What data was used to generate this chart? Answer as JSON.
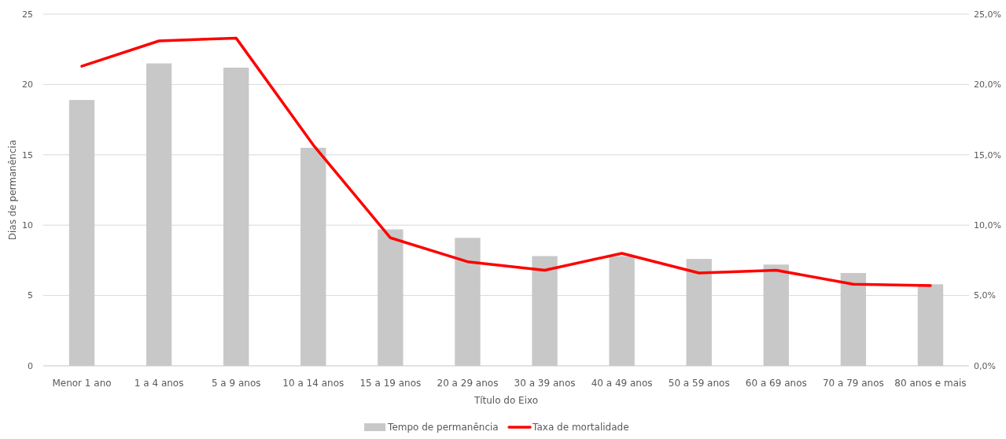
{
  "chart_data": {
    "type": "bar",
    "xlabel": "Título do Eixo",
    "ylabel": "Dias de permanência",
    "categories": [
      "Menor 1 ano",
      "1 a 4 anos",
      "5 a 9 anos",
      "10 a 14 anos",
      "15 a 19 anos",
      "20 a 29 anos",
      "30 a 39 anos",
      "40 a 49 anos",
      "50 a 59 anos",
      "60 a 69 anos",
      "70 a 79 anos",
      "80 anos e mais"
    ],
    "series": [
      {
        "name": "Tempo de permanência",
        "color": "#c8c8c8",
        "values": [
          18.9,
          21.5,
          21.2,
          15.5,
          9.7,
          9.1,
          7.8,
          7.8,
          7.6,
          7.2,
          6.6,
          5.8
        ]
      },
      {
        "name": "Taxa de mortalidade",
        "type": "line",
        "axis": "y2",
        "color": "#ff0000",
        "values": [
          0.213,
          0.231,
          0.233,
          0.157,
          0.091,
          0.074,
          0.068,
          0.08,
          0.066,
          0.068,
          0.058,
          0.057
        ]
      }
    ],
    "ylim": [
      0,
      25
    ],
    "yticks": [
      0,
      5,
      10,
      15,
      20,
      25
    ],
    "y2lim": [
      0,
      0.25
    ],
    "y2ticks": [
      {
        "value": 0,
        "label": "0,0%"
      },
      {
        "value": 0.05,
        "label": "5,0%"
      },
      {
        "value": 0.1,
        "label": "10,0%"
      },
      {
        "value": 0.15,
        "label": "15,0%"
      },
      {
        "value": 0.2,
        "label": "20,0%"
      },
      {
        "value": 0.25,
        "label": "25,0%"
      }
    ],
    "grid": "y",
    "legend": "bottom",
    "marker": "none",
    "line_style": "solid"
  }
}
